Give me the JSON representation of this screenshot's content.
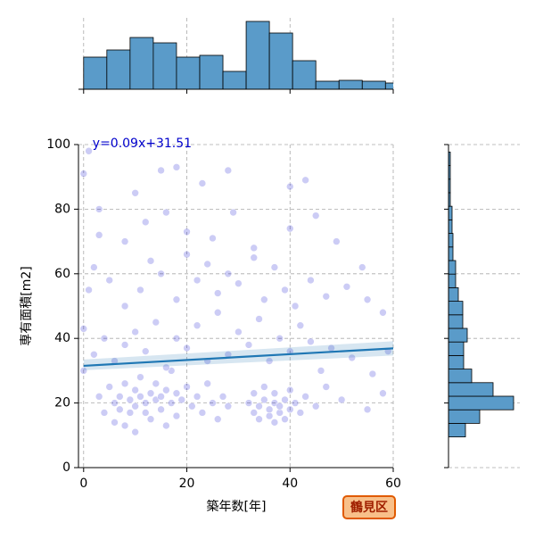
{
  "chart_data": {
    "type": "scatter",
    "x_label": "築年数[年]",
    "y_label": "専有面積[m2]",
    "annotation": "y=0.09x+31.51",
    "badge": "鶴見区",
    "regression": {
      "slope": 0.09,
      "intercept": 31.51,
      "color": "#1f77b4"
    },
    "xlim": [
      -1,
      60
    ],
    "ylim": [
      0,
      100
    ],
    "xticks": [
      0,
      20,
      40,
      60
    ],
    "yticks": [
      0,
      20,
      40,
      60,
      80,
      100
    ],
    "grid": true,
    "color": "#0000cc",
    "x": [
      3,
      4,
      5,
      6,
      6,
      7,
      7,
      8,
      8,
      9,
      9,
      10,
      10,
      10,
      11,
      11,
      12,
      12,
      13,
      13,
      14,
      14,
      15,
      15,
      16,
      16,
      17,
      17,
      18,
      18,
      19,
      20,
      21,
      22,
      23,
      24,
      25,
      26,
      27,
      28,
      32,
      33,
      33,
      34,
      34,
      35,
      35,
      36,
      36,
      37,
      37,
      37,
      38,
      38,
      39,
      39,
      40,
      40,
      41,
      42,
      43,
      45,
      47,
      50,
      55,
      58,
      2,
      4,
      6,
      8,
      10,
      12,
      14,
      16,
      18,
      20,
      22,
      24,
      26,
      28,
      30,
      32,
      34,
      36,
      38,
      40,
      42,
      44,
      46,
      48,
      52,
      56,
      59,
      0,
      0,
      1,
      2,
      5,
      8,
      11,
      13,
      15,
      18,
      20,
      22,
      24,
      26,
      28,
      30,
      33,
      35,
      37,
      39,
      41,
      44,
      47,
      51,
      55,
      58,
      3,
      8,
      12,
      16,
      20,
      25,
      29,
      33,
      40,
      45,
      49,
      0,
      1,
      3,
      10,
      15,
      18,
      23,
      28,
      40,
      43,
      54
    ],
    "y": [
      22,
      17,
      25,
      20,
      14,
      22,
      18,
      26,
      13,
      21,
      17,
      24,
      19,
      11,
      22,
      28,
      17,
      20,
      23,
      15,
      21,
      26,
      18,
      22,
      13,
      24,
      20,
      30,
      16,
      23,
      21,
      25,
      19,
      22,
      17,
      26,
      20,
      15,
      22,
      19,
      20,
      17,
      23,
      15,
      19,
      21,
      25,
      16,
      18,
      20,
      14,
      23,
      17,
      19,
      21,
      15,
      18,
      24,
      20,
      17,
      22,
      19,
      25,
      21,
      18,
      23,
      35,
      40,
      33,
      38,
      42,
      36,
      45,
      31,
      40,
      37,
      44,
      33,
      48,
      35,
      42,
      38,
      46,
      33,
      40,
      36,
      44,
      39,
      30,
      37,
      34,
      29,
      36,
      43,
      30,
      55,
      62,
      58,
      50,
      55,
      64,
      60,
      52,
      66,
      58,
      63,
      54,
      60,
      57,
      65,
      52,
      62,
      55,
      50,
      58,
      53,
      56,
      52,
      48,
      72,
      70,
      76,
      79,
      73,
      71,
      79,
      68,
      74,
      78,
      70,
      91,
      98,
      80,
      85,
      92,
      93,
      88,
      92,
      87,
      89,
      62
    ],
    "marginal_x": {
      "bins": [
        0,
        4.5,
        9,
        13.5,
        18,
        22.5,
        27,
        31.5,
        36,
        40.5,
        45,
        49.5,
        54,
        58.5,
        63
      ],
      "counts": [
        36,
        44,
        58,
        52,
        36,
        38,
        20,
        76,
        63,
        32,
        9,
        10,
        9,
        7
      ],
      "ylim": [
        0,
        80
      ],
      "color": "#5a9bc9"
    },
    "marginal_y": {
      "bins": [
        9.5,
        13.7,
        17.9,
        22.1,
        26.3,
        30.5,
        34.7,
        38.9,
        43.1,
        47.3,
        51.5,
        55.7,
        59.9,
        64.1,
        68.3,
        72.5,
        76.7,
        80.9,
        85.1,
        89.3,
        93.5,
        97.7
      ],
      "counts": [
        19,
        35,
        73,
        50,
        26,
        17,
        17,
        21,
        16,
        16,
        11,
        8,
        8,
        5,
        5,
        4,
        4,
        2,
        2,
        2,
        2
      ],
      "xlim": [
        0,
        80
      ],
      "color": "#5a9bc9"
    }
  }
}
